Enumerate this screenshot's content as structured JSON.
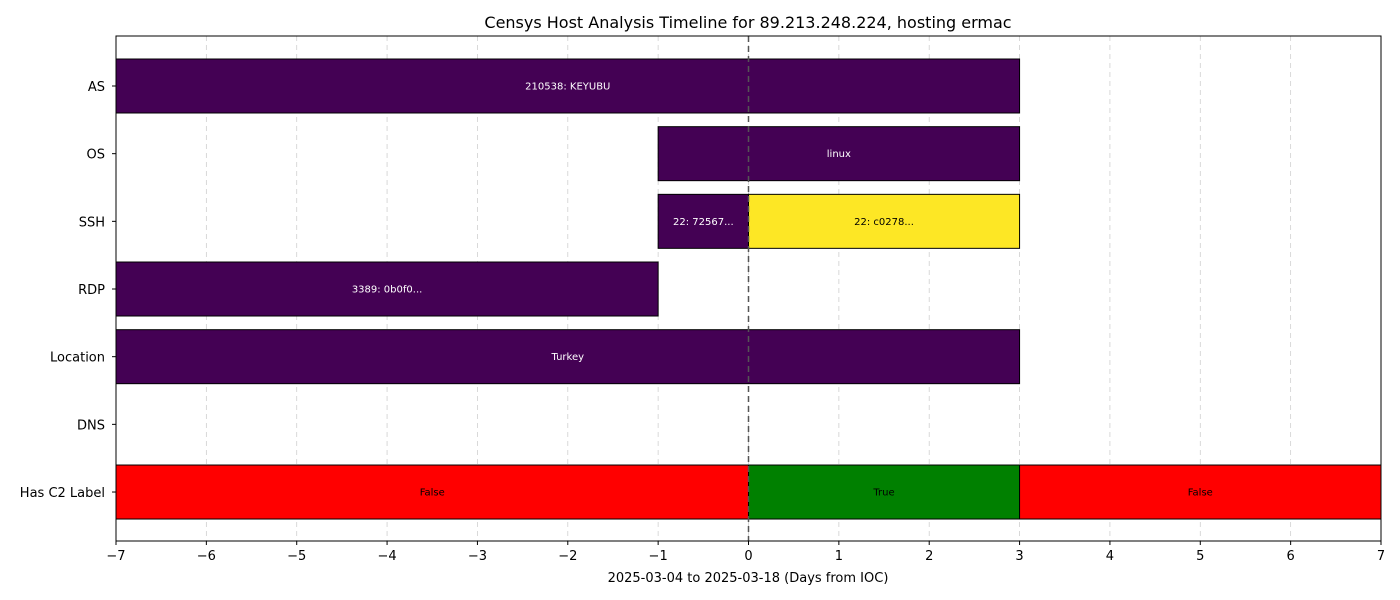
{
  "chart_data": {
    "type": "timeline",
    "title": "Censys Host Analysis Timeline for 89.213.248.224, hosting ermac",
    "xlabel": "2025-03-04 to 2025-03-18 (Days from IOC)",
    "ylabel": "",
    "xlim": [
      -7,
      7
    ],
    "x_ticks": [
      -7,
      -6,
      -5,
      -4,
      -3,
      -2,
      -1,
      0,
      1,
      2,
      3,
      4,
      5,
      6,
      7
    ],
    "x_tick_labels": [
      "−7",
      "−6",
      "−5",
      "−4",
      "−3",
      "−2",
      "−1",
      "0",
      "1",
      "2",
      "3",
      "4",
      "5",
      "6",
      "7"
    ],
    "grid_x": true,
    "reference_line_x": 0,
    "categories": [
      "AS",
      "OS",
      "SSH",
      "RDP",
      "Location",
      "DNS",
      "Has C2 Label"
    ],
    "bars": [
      {
        "row": "AS",
        "start": -7,
        "end": 3,
        "label": "210538: KEYUBU",
        "color": "#440154",
        "text_color": "#ffffff"
      },
      {
        "row": "OS",
        "start": -1,
        "end": 3,
        "label": "linux",
        "color": "#440154",
        "text_color": "#ffffff"
      },
      {
        "row": "SSH",
        "start": -1,
        "end": 0,
        "label": "22: 72567...",
        "color": "#440154",
        "text_color": "#ffffff"
      },
      {
        "row": "SSH",
        "start": 0,
        "end": 3,
        "label": "22: c0278...",
        "color": "#fde725",
        "text_color": "#000000"
      },
      {
        "row": "RDP",
        "start": -7,
        "end": -1,
        "label": "3389: 0b0f0...",
        "color": "#440154",
        "text_color": "#ffffff"
      },
      {
        "row": "Location",
        "start": -7,
        "end": 3,
        "label": "Turkey",
        "color": "#440154",
        "text_color": "#ffffff"
      },
      {
        "row": "Has C2 Label",
        "start": -7,
        "end": 0,
        "label": "False",
        "color": "#ff0000",
        "text_color": "#000000"
      },
      {
        "row": "Has C2 Label",
        "start": 0,
        "end": 3,
        "label": "True",
        "color": "#008000",
        "text_color": "#000000"
      },
      {
        "row": "Has C2 Label",
        "start": 3,
        "end": 7,
        "label": "False",
        "color": "#ff0000",
        "text_color": "#000000"
      }
    ]
  }
}
